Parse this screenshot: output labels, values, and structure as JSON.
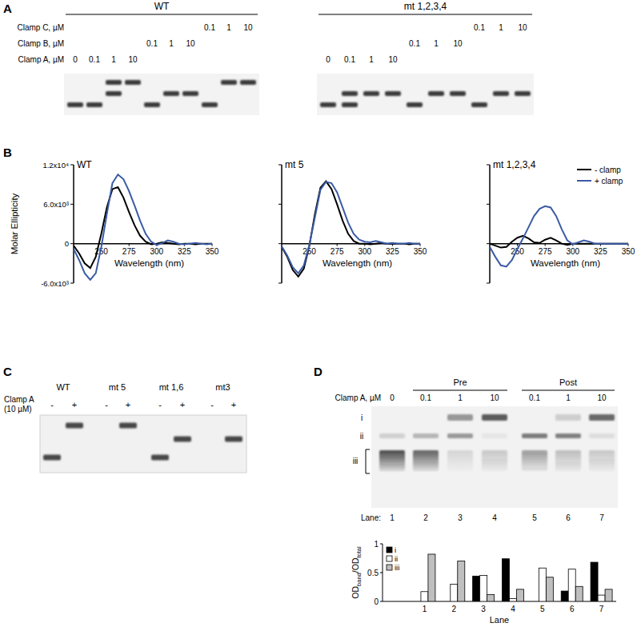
{
  "panel_labels": [
    "A",
    "B",
    "C",
    "D"
  ],
  "gel_a": {
    "clamp_labels": [
      "Clamp C, µM",
      "Clamp B, µM",
      "Clamp A, µM"
    ],
    "groups": [
      {
        "title": "WT",
        "lanes": [
          [
            {
              "conc": 0.1,
              "bands": [
                "iii"
              ]
            },
            {
              "conc": 1,
              "bands": [
                "i"
              ]
            },
            {
              "conc": 10,
              "bands": [
                "i"
              ]
            }
          ],
          [
            {
              "conc": 0.1,
              "bands": [
                "iii"
              ]
            },
            {
              "conc": 1,
              "bands": [
                "ii"
              ]
            },
            {
              "conc": 10,
              "bands": [
                "ii"
              ]
            }
          ],
          [
            {
              "conc": 0,
              "bands": [
                "iii"
              ]
            },
            {
              "conc": 0.1,
              "bands": [
                "iii"
              ]
            },
            {
              "conc": 1,
              "bands": [
                "i",
                "ii"
              ]
            },
            {
              "conc": 10,
              "bands": [
                "i"
              ]
            }
          ]
        ]
      },
      {
        "title": "mt 1,2,3,4",
        "lanes": [
          [
            {
              "conc": 0.1,
              "bands": [
                "iii"
              ]
            },
            {
              "conc": 1,
              "bands": [
                "ii"
              ]
            },
            {
              "conc": 10,
              "bands": [
                "ii"
              ]
            }
          ],
          [
            {
              "conc": 0.1,
              "bands": [
                "iii"
              ]
            },
            {
              "conc": 1,
              "bands": [
                "ii"
              ]
            },
            {
              "conc": 10,
              "bands": [
                "ii"
              ]
            }
          ],
          [
            {
              "conc": 0,
              "bands": [
                "iii"
              ]
            },
            {
              "conc": 0.1,
              "bands": [
                "ii",
                "iii"
              ]
            },
            {
              "conc": 1,
              "bands": [
                "ii"
              ]
            },
            {
              "conc": 10,
              "bands": [
                "ii"
              ]
            }
          ]
        ]
      }
    ]
  },
  "chart_data": [
    {
      "type": "line",
      "title": "WT",
      "x_label": "Wavelength (nm)",
      "y_label": "Molar Ellipticity",
      "x": [
        225,
        230,
        235,
        240,
        245,
        250,
        255,
        260,
        265,
        270,
        275,
        280,
        285,
        290,
        295,
        300,
        305,
        310,
        315,
        320,
        325,
        330,
        335,
        340,
        345,
        350
      ],
      "xlim": [
        225,
        350
      ],
      "xticks": [
        250,
        275,
        300,
        325,
        350
      ],
      "ylim": [
        -6000,
        12000
      ],
      "yticks": [
        {
          "value": -6000,
          "label": "-6.0x10³"
        },
        0,
        {
          "value": 6000,
          "label": "6.0x10³"
        },
        {
          "value": 12000,
          "label": "1.2x10⁴"
        }
      ],
      "series": [
        {
          "name": "- clamp",
          "color": "#000000",
          "values": [
            -300,
            -1500,
            -3000,
            -3700,
            -2000,
            1500,
            5500,
            8300,
            8600,
            7000,
            4800,
            2800,
            1200,
            300,
            -100,
            0,
            200,
            100,
            0,
            -100,
            0,
            0,
            -100,
            0,
            0,
            0
          ]
        },
        {
          "name": "+ clamp",
          "color": "#3b5ba5",
          "values": [
            -800,
            -2500,
            -4500,
            -5500,
            -4500,
            -500,
            4500,
            9200,
            10500,
            9800,
            8000,
            5800,
            3500,
            1500,
            300,
            -200,
            100,
            500,
            300,
            0,
            -100,
            0,
            100,
            0,
            -100,
            0
          ]
        }
      ]
    },
    {
      "type": "line",
      "title": "mt 5",
      "x_label": "Wavelength (nm)",
      "tick_labels": "x",
      "x": [
        225,
        230,
        235,
        240,
        245,
        250,
        255,
        260,
        265,
        270,
        275,
        280,
        285,
        290,
        295,
        300,
        305,
        310,
        315,
        320,
        325,
        330,
        335,
        340,
        345,
        350
      ],
      "xlim": [
        225,
        350
      ],
      "xticks": [
        250,
        275,
        300,
        325,
        350
      ],
      "ylim": [
        -6000,
        12000
      ],
      "yticks": [
        {
          "value": -6000,
          "label": "-6.0x10³"
        },
        0,
        {
          "value": 6000,
          "label": "6.0x10³"
        },
        {
          "value": 12000,
          "label": "1.2x10⁴"
        }
      ],
      "series": [
        {
          "name": "- clamp",
          "color": "#000000",
          "values": [
            -500,
            -2000,
            -4000,
            -5000,
            -3800,
            -300,
            4500,
            8500,
            9500,
            8300,
            6000,
            3500,
            1500,
            400,
            0,
            0,
            -100,
            0,
            100,
            0,
            0,
            0,
            0,
            -100,
            0,
            0
          ]
        },
        {
          "name": "+ clamp",
          "color": "#3b5ba5",
          "values": [
            -400,
            -1800,
            -3600,
            -4500,
            -3300,
            -200,
            4000,
            8200,
            9400,
            9200,
            7800,
            5500,
            3200,
            1500,
            600,
            300,
            200,
            400,
            200,
            0,
            100,
            0,
            0,
            100,
            0,
            0
          ]
        }
      ]
    },
    {
      "type": "line",
      "title": "mt 1,2,3,4",
      "x_label": "Wavelength (nm)",
      "tick_labels": "x",
      "legend": "top-right",
      "x": [
        225,
        230,
        235,
        240,
        245,
        250,
        255,
        260,
        265,
        270,
        275,
        280,
        285,
        290,
        295,
        300,
        305,
        310,
        315,
        320,
        325,
        330,
        335,
        340,
        345,
        350
      ],
      "xlim": [
        225,
        350
      ],
      "xticks": [
        250,
        275,
        300,
        325,
        350
      ],
      "ylim": [
        -6000,
        12000
      ],
      "yticks": [
        {
          "value": -6000,
          "label": "-6.0x10³"
        },
        0,
        {
          "value": 6000,
          "label": "6.0x10³"
        },
        {
          "value": 12000,
          "label": "1.2x10⁴"
        }
      ],
      "series": [
        {
          "name": "- clamp",
          "color": "#000000",
          "values": [
            0,
            -300,
            -600,
            -500,
            300,
            900,
            1200,
            800,
            200,
            100,
            600,
            900,
            500,
            0,
            -200,
            0,
            0,
            0,
            0,
            0,
            0,
            0,
            0,
            0,
            0,
            0
          ]
        },
        {
          "name": "+ clamp",
          "color": "#3b5ba5",
          "values": [
            -500,
            -2000,
            -3300,
            -3500,
            -2500,
            -800,
            800,
            2500,
            4200,
            5300,
            5700,
            5500,
            4200,
            2200,
            500,
            -100,
            200,
            500,
            300,
            0,
            0,
            0,
            0,
            0,
            0,
            0
          ]
        }
      ]
    },
    {
      "type": "bar",
      "x_label": "Lane",
      "y_label": [
        "OD",
        "band",
        "/OD",
        "total"
      ],
      "legend": "top-left",
      "categories": [
        "1",
        "2",
        "3",
        "4",
        "5",
        "6",
        "7"
      ],
      "ylim": [
        0,
        1
      ],
      "yticks": [
        0,
        0.5,
        1
      ],
      "series": [
        {
          "name": "i",
          "color": "#000000",
          "values": [
            0,
            0,
            0.44,
            0.74,
            0,
            0.18,
            0.68
          ]
        },
        {
          "name": "ii",
          "color": "#ffffff",
          "values": [
            0.17,
            0.3,
            0.45,
            0.05,
            0.58,
            0.56,
            0.11
          ]
        },
        {
          "name": "iii",
          "color": "#bfbfbf",
          "values": [
            0.82,
            0.7,
            0.12,
            0.21,
            0.42,
            0.26,
            0.21
          ]
        }
      ]
    }
  ],
  "gel_c": {
    "row_label": [
      "Clamp A",
      "(10 µM)"
    ],
    "samples": [
      {
        "title": "WT",
        "lanes": [
          {
            "sign": "-",
            "bands": [
              "iii"
            ]
          },
          {
            "sign": "+",
            "bands": [
              "i"
            ]
          }
        ]
      },
      {
        "title": "mt 5",
        "lanes": [
          {
            "sign": "-",
            "bands": []
          },
          {
            "sign": "+",
            "bands": [
              "i"
            ]
          }
        ]
      },
      {
        "title": "mt 1,6",
        "lanes": [
          {
            "sign": "-",
            "bands": [
              "iii"
            ]
          },
          {
            "sign": "+",
            "bands": [
              "ii"
            ]
          }
        ]
      },
      {
        "title": "mt3",
        "lanes": [
          {
            "sign": "-",
            "bands": []
          },
          {
            "sign": "+",
            "bands": [
              "ii"
            ]
          }
        ]
      }
    ]
  },
  "gel_d": {
    "row_label": "Clamp A, µM",
    "concentrations": [
      0,
      0.1,
      1,
      10,
      0.1,
      1,
      10
    ],
    "groups": [
      {
        "title": "Pre",
        "lanes": [
          2,
          3,
          4
        ]
      },
      {
        "title": "Post",
        "lanes": [
          5,
          6,
          7
        ]
      }
    ],
    "band_labels": [
      "i",
      "ii",
      "iii"
    ],
    "lane_label": "Lane:",
    "lane_numbers": [
      1,
      2,
      3,
      4,
      5,
      6,
      7
    ]
  }
}
